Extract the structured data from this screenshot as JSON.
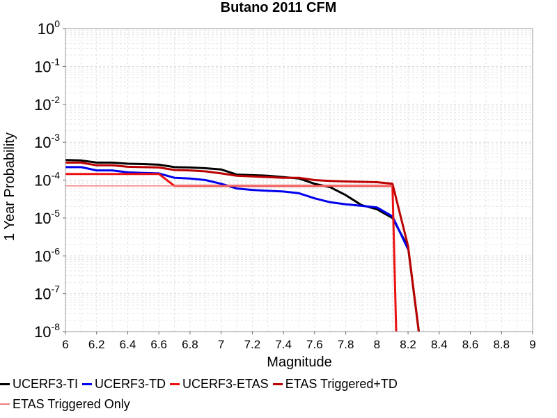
{
  "chart_data": {
    "type": "line",
    "title": "Butano 2011 CFM",
    "xlabel": "Magnitude",
    "ylabel": "1 Year Probability",
    "x_scale": "linear",
    "y_scale": "log",
    "xlim": [
      6,
      9
    ],
    "ylim": [
      1e-08,
      1
    ],
    "x_ticks": [
      "6",
      "6.2",
      "6.4",
      "6.6",
      "6.8",
      "7",
      "7.2",
      "7.4",
      "7.6",
      "7.8",
      "8",
      "8.2",
      "8.4",
      "8.6",
      "8.8",
      "9"
    ],
    "y_ticks": [
      {
        "base": "10",
        "exp": "0",
        "value": 1
      },
      {
        "base": "10",
        "exp": "-1",
        "value": 0.1
      },
      {
        "base": "10",
        "exp": "-2",
        "value": 0.01
      },
      {
        "base": "10",
        "exp": "-3",
        "value": 0.001
      },
      {
        "base": "10",
        "exp": "-4",
        "value": 0.0001
      },
      {
        "base": "10",
        "exp": "-5",
        "value": 1e-05
      },
      {
        "base": "10",
        "exp": "-6",
        "value": 1e-06
      },
      {
        "base": "10",
        "exp": "-7",
        "value": 1e-07
      },
      {
        "base": "10",
        "exp": "-8",
        "value": 1e-08
      }
    ],
    "grid": true,
    "legend_position": "bottom",
    "series": [
      {
        "name": "UCERF3-TI",
        "color": "#000000",
        "line_width": 3,
        "x": [
          6.0,
          6.1,
          6.2,
          6.3,
          6.4,
          6.5,
          6.6,
          6.7,
          6.8,
          6.9,
          7.0,
          7.1,
          7.2,
          7.3,
          7.4,
          7.5,
          7.6,
          7.7,
          7.8,
          7.9,
          8.0,
          8.1,
          8.2,
          8.3
        ],
        "y": [
          0.00034,
          0.00033,
          0.00029,
          0.00029,
          0.00027,
          0.000265,
          0.000255,
          0.00022,
          0.000215,
          0.000205,
          0.00019,
          0.00014,
          0.000135,
          0.00013,
          0.00012,
          0.00011,
          8e-05,
          6.5e-05,
          4e-05,
          2.2e-05,
          1.7e-05,
          1e-05,
          1.7e-06,
          1e-09
        ]
      },
      {
        "name": "UCERF3-TD",
        "color": "#0000ee",
        "line_width": 3,
        "x": [
          6.0,
          6.1,
          6.2,
          6.3,
          6.4,
          6.5,
          6.6,
          6.7,
          6.8,
          6.9,
          7.0,
          7.1,
          7.2,
          7.3,
          7.4,
          7.5,
          7.6,
          7.7,
          7.8,
          7.9,
          8.0,
          8.1,
          8.2
        ],
        "y": [
          0.00022,
          0.00022,
          0.00018,
          0.00018,
          0.00016,
          0.000155,
          0.00015,
          0.000115,
          0.00011,
          0.0001,
          8e-05,
          6e-05,
          5.5e-05,
          5.2e-05,
          5e-05,
          4.5e-05,
          3.3e-05,
          2.6e-05,
          2.3e-05,
          2.1e-05,
          1.9e-05,
          1.1e-05,
          1.5e-06
        ]
      },
      {
        "name": "UCERF3-ETAS",
        "color": "#ee1111",
        "line_width": 3,
        "x": [
          6.0,
          6.1,
          6.2,
          6.3,
          6.4,
          6.5,
          6.6,
          6.7,
          6.8,
          6.9,
          7.0,
          7.1,
          7.2,
          7.3,
          7.4,
          7.5,
          7.6,
          7.7,
          7.8,
          7.9,
          8.0,
          8.1,
          8.13
        ],
        "y": [
          0.000145,
          0.000145,
          0.000145,
          0.000145,
          0.000145,
          0.000145,
          0.000145,
          7e-05,
          7e-05,
          7e-05,
          7e-05,
          7e-05,
          7e-05,
          7e-05,
          7e-05,
          7e-05,
          7e-05,
          7e-05,
          7e-05,
          7e-05,
          7e-05,
          7e-05,
          1e-09
        ]
      },
      {
        "name": "ETAS Triggered+TD",
        "color": "#bb0000",
        "line_width": 3,
        "x": [
          6.0,
          6.1,
          6.2,
          6.3,
          6.4,
          6.5,
          6.6,
          6.7,
          6.8,
          6.9,
          7.0,
          7.1,
          7.2,
          7.3,
          7.4,
          7.5,
          7.6,
          7.7,
          7.8,
          7.9,
          8.0,
          8.1,
          8.2,
          8.3
        ],
        "y": [
          0.00029,
          0.00029,
          0.000245,
          0.000245,
          0.000225,
          0.00022,
          0.000215,
          0.000185,
          0.00018,
          0.00017,
          0.00015,
          0.00013,
          0.000125,
          0.00012,
          0.000115,
          0.000115,
          0.0001,
          9.5e-05,
          9.2e-05,
          9e-05,
          8.8e-05,
          8e-05,
          1.8e-06,
          1e-09
        ]
      },
      {
        "name": "ETAS Triggered Only",
        "color": "#f08080",
        "line_width": 1.5,
        "x": [
          6.0,
          8.1
        ],
        "y": [
          7e-05,
          7e-05
        ]
      }
    ]
  }
}
